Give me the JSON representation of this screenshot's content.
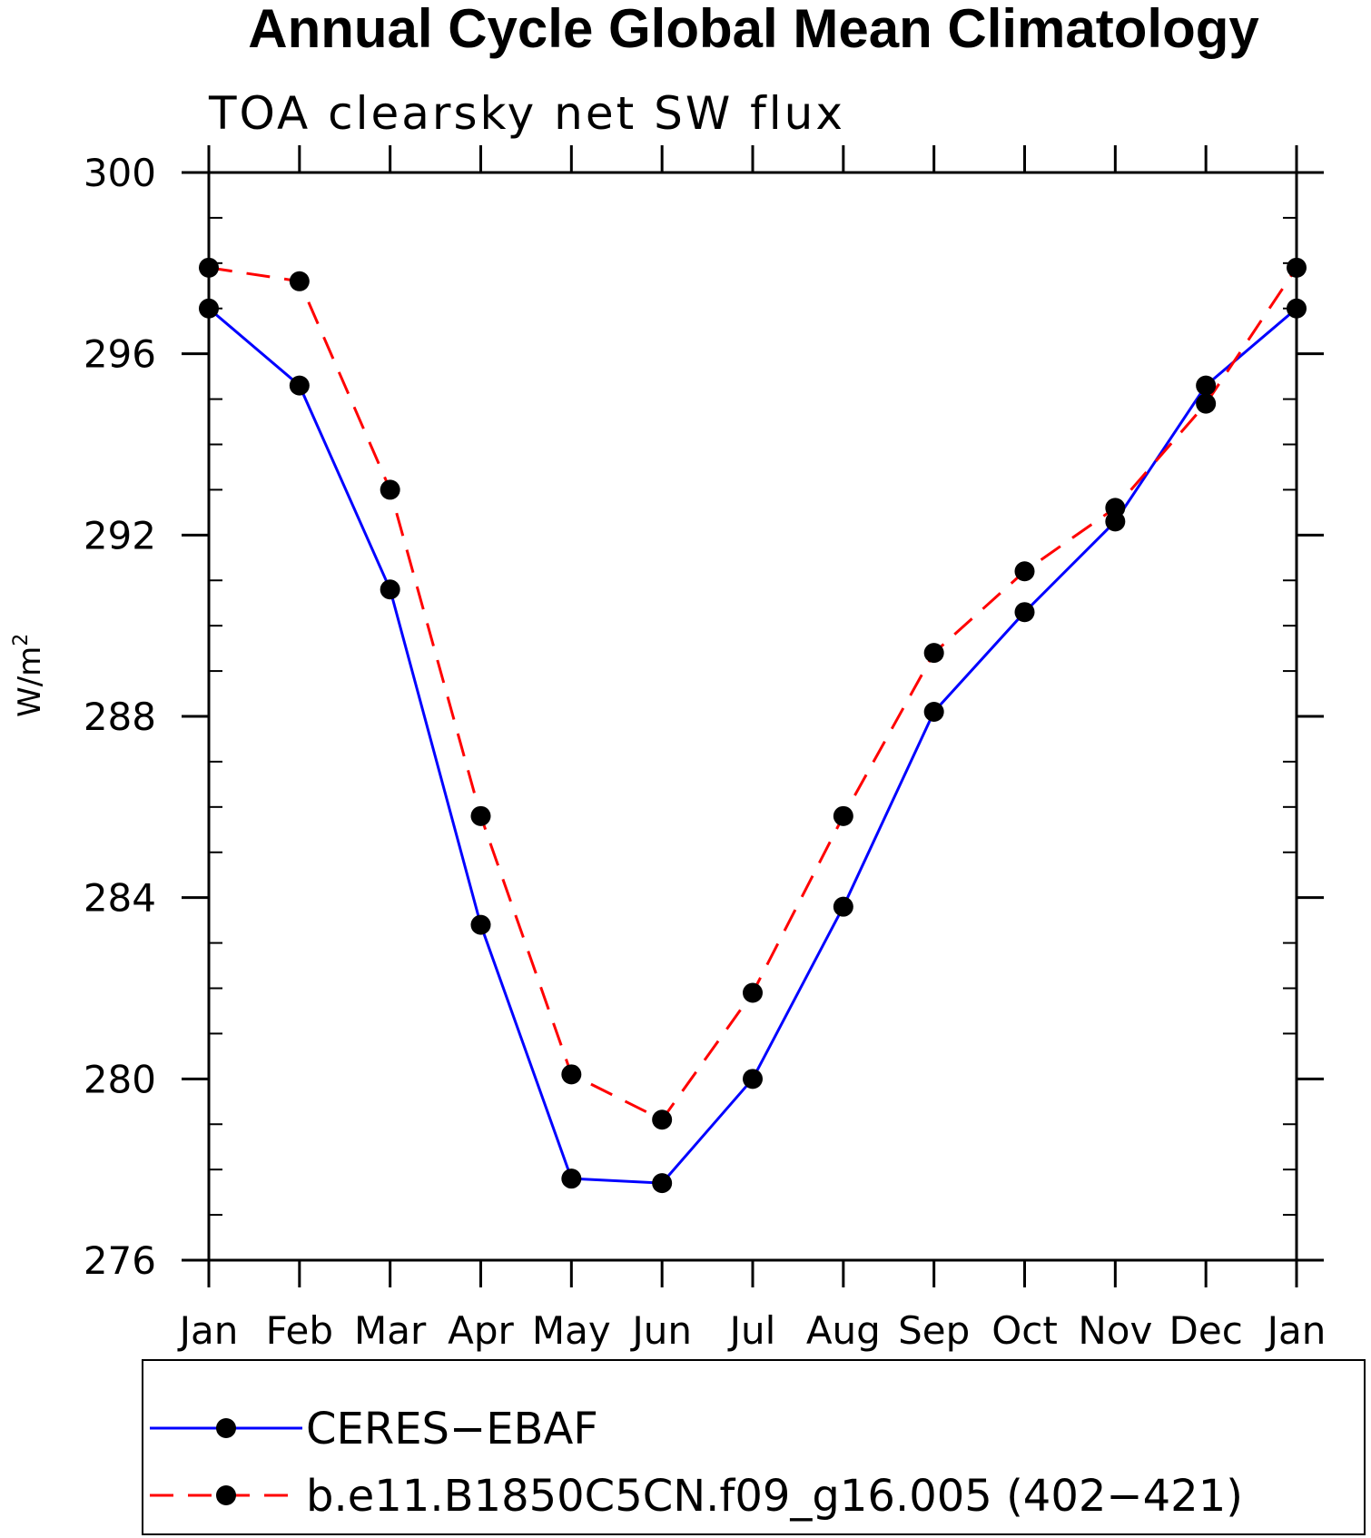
{
  "chart_data": {
    "type": "line",
    "title": "Annual Cycle Global Mean Climatology",
    "subtitle": "TOA clearsky net SW flux",
    "xlabel": "",
    "ylabel": "W/m",
    "ylabel_sup": "2",
    "categories": [
      "Jan",
      "Feb",
      "Mar",
      "Apr",
      "May",
      "Jun",
      "Jul",
      "Aug",
      "Sep",
      "Oct",
      "Nov",
      "Dec",
      "Jan"
    ],
    "ylim": [
      276,
      300
    ],
    "yticks": [
      276,
      280,
      284,
      288,
      292,
      296,
      300
    ],
    "y_minor_step": 1,
    "legend_position": "bottom",
    "series": [
      {
        "name": "CERES−EBAF",
        "color": "#0000ff",
        "dash": "solid",
        "marker": "filled-circle",
        "values": [
          297.0,
          295.3,
          290.8,
          283.4,
          277.8,
          277.7,
          280.0,
          283.8,
          288.1,
          290.3,
          292.3,
          295.3,
          297.0
        ]
      },
      {
        "name": "b.e11.B1850C5CN.f09_g16.005 (402−421)",
        "color": "#ff0000",
        "dash": "dashed",
        "marker": "filled-circle",
        "values": [
          297.9,
          297.6,
          293.0,
          285.8,
          280.1,
          279.1,
          281.9,
          285.8,
          289.4,
          291.2,
          292.6,
          294.9,
          297.9
        ]
      }
    ]
  }
}
